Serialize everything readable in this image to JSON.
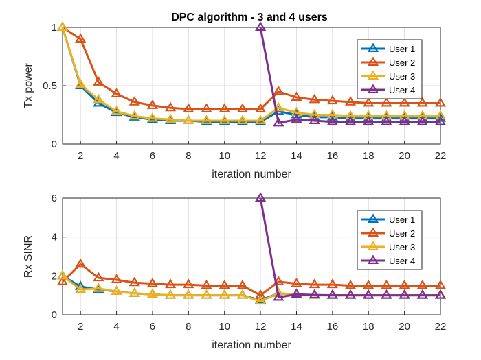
{
  "figure": {
    "title": "DPC algorithm - 3 and 4 users"
  },
  "chart_data": [
    {
      "type": "line",
      "title": "DPC algorithm - 3 and 4 users",
      "xlabel": "iteration number",
      "ylabel": "Tx power",
      "xlim": [
        1,
        22
      ],
      "ylim": [
        0,
        1
      ],
      "xticks": [
        2,
        4,
        6,
        8,
        10,
        12,
        14,
        16,
        18,
        20,
        22
      ],
      "yticks": [
        0,
        0.5,
        1
      ],
      "ytick_labels": [
        "0",
        "0.5",
        "1"
      ],
      "grid": true,
      "legend_position": "top-right",
      "marker": "triangle",
      "series": [
        {
          "name": "User 1",
          "color": "#0072BD",
          "x": [
            1,
            2,
            3,
            4,
            5,
            6,
            7,
            8,
            9,
            10,
            11,
            12,
            13,
            14,
            15,
            16,
            17,
            18,
            19,
            20,
            21,
            22
          ],
          "values": [
            1.0,
            0.5,
            0.35,
            0.27,
            0.23,
            0.21,
            0.2,
            0.2,
            0.19,
            0.19,
            0.19,
            0.19,
            0.28,
            0.25,
            0.23,
            0.23,
            0.22,
            0.22,
            0.22,
            0.22,
            0.22,
            0.22
          ]
        },
        {
          "name": "User 2",
          "color": "#D95319",
          "x": [
            1,
            2,
            3,
            4,
            5,
            6,
            7,
            8,
            9,
            10,
            11,
            12,
            13,
            14,
            15,
            16,
            17,
            18,
            19,
            20,
            21,
            22
          ],
          "values": [
            1.0,
            0.9,
            0.53,
            0.43,
            0.36,
            0.33,
            0.31,
            0.3,
            0.3,
            0.3,
            0.3,
            0.3,
            0.45,
            0.4,
            0.38,
            0.37,
            0.36,
            0.35,
            0.35,
            0.35,
            0.35,
            0.35
          ]
        },
        {
          "name": "User 3",
          "color": "#EDB120",
          "x": [
            1,
            2,
            3,
            4,
            5,
            6,
            7,
            8,
            9,
            10,
            11,
            12,
            13,
            14,
            15,
            16,
            17,
            18,
            19,
            20,
            21,
            22
          ],
          "values": [
            1.0,
            0.51,
            0.38,
            0.28,
            0.24,
            0.22,
            0.21,
            0.2,
            0.2,
            0.2,
            0.2,
            0.2,
            0.31,
            0.27,
            0.25,
            0.25,
            0.24,
            0.24,
            0.24,
            0.24,
            0.24,
            0.24
          ]
        },
        {
          "name": "User 4",
          "color": "#7E2F8E",
          "x": [
            12,
            13,
            14,
            15,
            16,
            17,
            18,
            19,
            20,
            21,
            22
          ],
          "values": [
            1.0,
            0.18,
            0.21,
            0.2,
            0.19,
            0.19,
            0.19,
            0.19,
            0.19,
            0.19,
            0.19
          ]
        }
      ]
    },
    {
      "type": "line",
      "title": "",
      "xlabel": "iteration number",
      "ylabel": "Rx SINR",
      "xlim": [
        1,
        22
      ],
      "ylim": [
        0,
        6
      ],
      "xticks": [
        2,
        4,
        6,
        8,
        10,
        12,
        14,
        16,
        18,
        20,
        22
      ],
      "yticks": [
        0,
        2,
        4,
        6
      ],
      "ytick_labels": [
        "0",
        "2",
        "4",
        "6"
      ],
      "grid": true,
      "legend_position": "top-right",
      "marker": "triangle",
      "series": [
        {
          "name": "User 1",
          "color": "#0072BD",
          "x": [
            1,
            2,
            3,
            4,
            5,
            6,
            7,
            8,
            9,
            10,
            11,
            12,
            13,
            14,
            15,
            16,
            17,
            18,
            19,
            20,
            21,
            22
          ],
          "values": [
            2.0,
            1.45,
            1.3,
            1.2,
            1.1,
            1.05,
            1.0,
            1.0,
            1.0,
            1.0,
            1.0,
            0.75,
            1.1,
            1.05,
            1.0,
            1.0,
            1.0,
            1.0,
            1.0,
            1.0,
            1.0,
            1.0
          ]
        },
        {
          "name": "User 2",
          "color": "#D95319",
          "x": [
            1,
            2,
            3,
            4,
            5,
            6,
            7,
            8,
            9,
            10,
            11,
            12,
            13,
            14,
            15,
            16,
            17,
            18,
            19,
            20,
            21,
            22
          ],
          "values": [
            1.7,
            2.6,
            1.9,
            1.8,
            1.65,
            1.6,
            1.55,
            1.55,
            1.5,
            1.5,
            1.5,
            1.0,
            1.7,
            1.6,
            1.55,
            1.55,
            1.5,
            1.5,
            1.5,
            1.5,
            1.5,
            1.5
          ]
        },
        {
          "name": "User 3",
          "color": "#EDB120",
          "x": [
            1,
            2,
            3,
            4,
            5,
            6,
            7,
            8,
            9,
            10,
            11,
            12,
            13,
            14,
            15,
            16,
            17,
            18,
            19,
            20,
            21,
            22
          ],
          "values": [
            2.0,
            1.3,
            1.35,
            1.2,
            1.1,
            1.05,
            1.0,
            1.0,
            1.0,
            1.0,
            1.0,
            0.7,
            1.1,
            1.05,
            1.0,
            1.0,
            1.0,
            1.0,
            1.0,
            1.0,
            1.0,
            1.0
          ]
        },
        {
          "name": "User 4",
          "color": "#7E2F8E",
          "x": [
            12,
            13,
            14,
            15,
            16,
            17,
            18,
            19,
            20,
            21,
            22
          ],
          "values": [
            6.0,
            0.9,
            1.05,
            1.02,
            1.0,
            1.0,
            1.0,
            1.0,
            1.0,
            1.0,
            1.0
          ]
        }
      ]
    }
  ]
}
